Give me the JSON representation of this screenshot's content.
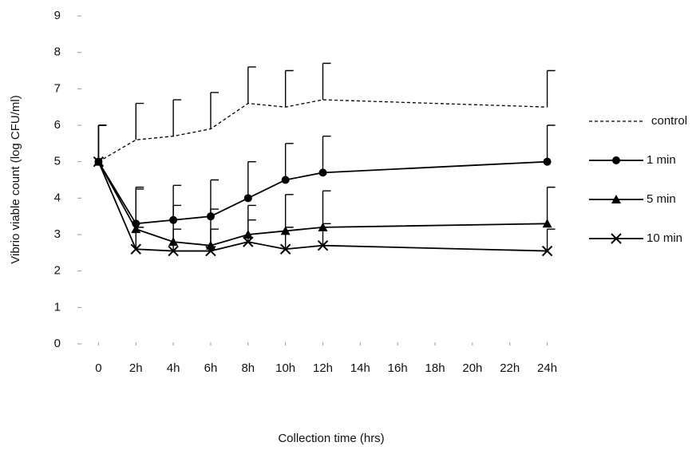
{
  "chart_data": {
    "type": "line",
    "xlabel": "Collection time (hrs)",
    "ylabel": "Vibrio viable count (log CFU/ml)",
    "x": [
      0,
      2,
      4,
      6,
      8,
      10,
      12,
      24
    ],
    "xlim": [
      -1,
      25
    ],
    "xticks": [
      0,
      {
        "value": 2,
        "label": "2h"
      },
      {
        "value": 4,
        "label": "4h"
      },
      {
        "value": 6,
        "label": "6h"
      },
      {
        "value": 8,
        "label": "8h"
      },
      {
        "value": 10,
        "label": "10h"
      },
      {
        "value": 12,
        "label": "12h"
      },
      {
        "value": 14,
        "label": "14h"
      },
      {
        "value": 16,
        "label": "16h"
      },
      {
        "value": 18,
        "label": "18h"
      },
      {
        "value": 20,
        "label": "20h"
      },
      {
        "value": 22,
        "label": "22h"
      },
      {
        "value": 24,
        "label": "24h"
      }
    ],
    "ylim": [
      0,
      9
    ],
    "yticks": [
      0,
      1,
      2,
      3,
      4,
      5,
      6,
      7,
      8,
      9
    ],
    "series": [
      {
        "name": "control",
        "color": "#000000",
        "dash": true,
        "marker": "none",
        "values": [
          5.0,
          5.6,
          5.7,
          5.9,
          6.6,
          6.5,
          6.7,
          6.5
        ],
        "errors": [
          1.0,
          1.0,
          1.0,
          1.0,
          1.0,
          1.0,
          1.0,
          1.0
        ]
      },
      {
        "name": "1 min",
        "color": "#000000",
        "dash": false,
        "marker": "circle",
        "values": [
          5.0,
          3.3,
          3.4,
          3.5,
          4.0,
          4.5,
          4.7,
          5.0
        ],
        "errors": [
          1.0,
          1.0,
          0.95,
          1.0,
          1.0,
          1.0,
          1.0,
          1.0
        ]
      },
      {
        "name": "5 min",
        "color": "#000000",
        "dash": false,
        "marker": "triangle",
        "values": [
          5.0,
          3.15,
          2.8,
          2.7,
          3.0,
          3.1,
          3.2,
          3.3
        ],
        "errors": [
          1.0,
          1.1,
          1.0,
          1.0,
          0.8,
          1.0,
          1.0,
          1.0
        ]
      },
      {
        "name": "10 min",
        "color": "#000000",
        "dash": false,
        "marker": "cross",
        "values": [
          5.0,
          2.6,
          2.55,
          2.55,
          2.8,
          2.6,
          2.7,
          2.55
        ],
        "errors": [
          1.0,
          0.6,
          0.6,
          0.6,
          0.6,
          0.6,
          0.6,
          0.6
        ]
      }
    ]
  }
}
